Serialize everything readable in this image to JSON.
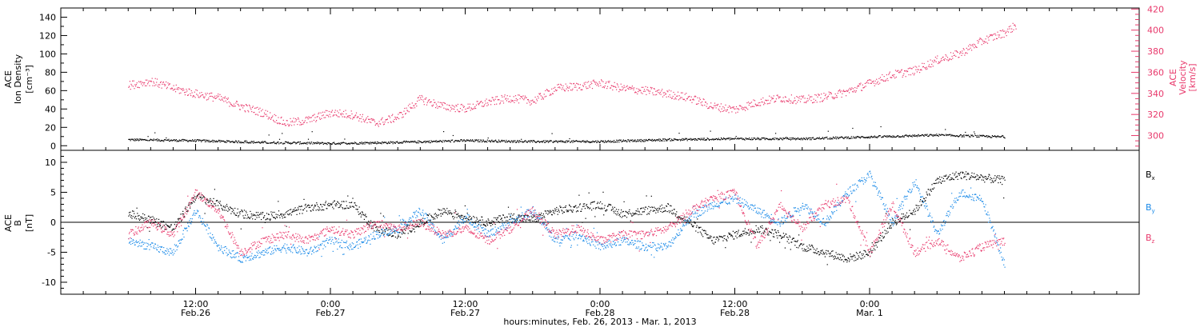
{
  "chart_data": [
    {
      "type": "scatter",
      "panel": "top",
      "ylabel_left": [
        "ACE",
        "Ion Density",
        "[cm⁻³]"
      ],
      "ylabel_right": [
        "ACE",
        "Velocity",
        "[km/s]"
      ],
      "ylim_left": [
        -5,
        150
      ],
      "yticks_left": [
        "0",
        "20",
        "40",
        "60",
        "80",
        "100",
        "120",
        "140"
      ],
      "ylim_right": [
        286,
        421
      ],
      "yticks_right": [
        "300",
        "320",
        "340",
        "360",
        "380",
        "400",
        "420"
      ],
      "series": [
        {
          "axis": "left",
          "color": "#000000",
          "x_hours": [
            0,
            6,
            12,
            18,
            24,
            30,
            36,
            42,
            48,
            54,
            60,
            66,
            72,
            78
          ],
          "values": [
            7,
            6,
            4,
            3,
            4,
            6,
            5,
            5,
            7,
            8,
            8,
            10,
            12,
            10
          ]
        },
        {
          "axis": "right",
          "color": "#e8386b",
          "x_hours": [
            0,
            2,
            4,
            6,
            8,
            10,
            12,
            14,
            16,
            18,
            20,
            22,
            24,
            26,
            28,
            30,
            32,
            34,
            36,
            38,
            40,
            42,
            44,
            46,
            48,
            50,
            52,
            54,
            56,
            58,
            60,
            62,
            64,
            66,
            68,
            70,
            72,
            74,
            76,
            78,
            79
          ],
          "values": [
            348,
            352,
            345,
            340,
            336,
            328,
            322,
            312,
            315,
            322,
            320,
            312,
            318,
            335,
            328,
            326,
            332,
            336,
            333,
            345,
            347,
            350,
            345,
            343,
            340,
            336,
            328,
            325,
            332,
            336,
            334,
            337,
            342,
            350,
            358,
            362,
            372,
            378,
            390,
            398,
            405
          ]
        }
      ]
    },
    {
      "type": "scatter",
      "panel": "bottom",
      "ylabel": [
        "ACE",
        "B",
        "[nT]"
      ],
      "ylim": [
        -12,
        12
      ],
      "yticks": [
        "10",
        "5",
        "0",
        "-5",
        "-10"
      ],
      "legend": [
        {
          "label": "B",
          "sub": "x",
          "color": "#000000"
        },
        {
          "label": "B",
          "sub": "y",
          "color": "#1a8ae8"
        },
        {
          "label": "B",
          "sub": "z",
          "color": "#e8386b"
        }
      ],
      "series": [
        {
          "name": "Bx",
          "color": "#000000",
          "x_hours": [
            0,
            2,
            4,
            6,
            8,
            10,
            12,
            14,
            16,
            18,
            20,
            22,
            24,
            26,
            28,
            30,
            32,
            34,
            36,
            38,
            40,
            42,
            44,
            46,
            48,
            50,
            52,
            54,
            56,
            58,
            60,
            62,
            64,
            66,
            68,
            70,
            72,
            74,
            76,
            78
          ],
          "values": [
            1.5,
            0.5,
            -1,
            4.5,
            3,
            1.5,
            1,
            1.5,
            2.5,
            3,
            3,
            -1,
            -2,
            0,
            2,
            1,
            0,
            1,
            0.5,
            2,
            2.5,
            3,
            1.5,
            2,
            2.5,
            0,
            -3,
            -2,
            -1,
            -2,
            -4,
            -5,
            -6,
            -5,
            0,
            2,
            7,
            8,
            7.5,
            7
          ]
        },
        {
          "name": "By",
          "color": "#1a8ae8",
          "x_hours": [
            0,
            2,
            4,
            6,
            8,
            10,
            12,
            14,
            16,
            18,
            20,
            22,
            24,
            26,
            28,
            30,
            32,
            34,
            36,
            38,
            40,
            42,
            44,
            46,
            48,
            50,
            52,
            54,
            56,
            58,
            60,
            62,
            64,
            66,
            68,
            70,
            72,
            74,
            76,
            78
          ],
          "values": [
            -3,
            -4,
            -5,
            2,
            -4,
            -6,
            -5,
            -4,
            -5,
            -3,
            -4,
            -2,
            -1,
            2,
            -3,
            1,
            -2,
            0,
            2,
            -3,
            -2,
            -4,
            -3,
            -4,
            -4,
            1,
            3,
            4,
            2,
            0,
            3,
            0,
            5,
            8,
            0,
            7,
            -2,
            5,
            4,
            -7
          ]
        },
        {
          "name": "Bz",
          "color": "#e8386b",
          "x_hours": [
            0,
            2,
            4,
            6,
            8,
            10,
            12,
            14,
            16,
            18,
            20,
            22,
            24,
            26,
            28,
            30,
            32,
            34,
            36,
            38,
            40,
            42,
            44,
            46,
            48,
            50,
            52,
            54,
            56,
            58,
            60,
            62,
            64,
            66,
            68,
            70,
            72,
            74,
            76,
            78
          ],
          "values": [
            -2,
            0,
            -2,
            5,
            2,
            -5,
            -3,
            -2,
            -3,
            -1,
            -2,
            0,
            -1,
            0,
            -2,
            -1,
            -3,
            -1,
            2,
            -2,
            -1,
            -3,
            -2,
            -2,
            -1,
            2,
            4,
            5,
            -4,
            3,
            -1,
            3,
            4,
            -5,
            3,
            -5,
            -3,
            -6,
            -4,
            -3
          ]
        }
      ]
    }
  ],
  "x_axis": {
    "xlim_hours": [
      -6,
      90
    ],
    "ticks": [
      {
        "hours": 6,
        "time": "12:00",
        "date": "Feb.26"
      },
      {
        "hours": 18,
        "time": "0:00",
        "date": "Feb.27"
      },
      {
        "hours": 30,
        "time": "12:00",
        "date": "Feb.27"
      },
      {
        "hours": 42,
        "time": "0:00",
        "date": "Feb.28"
      },
      {
        "hours": 54,
        "time": "12:00",
        "date": "Feb.28"
      },
      {
        "hours": 66,
        "time": "0:00",
        "date": "Mar. 1"
      }
    ],
    "xlabel": "hours:minutes, Feb. 26, 2013 - Mar. 1, 2013"
  },
  "colors": {
    "density": "#000000",
    "velocity": "#e8386b",
    "bx": "#000000",
    "by": "#1a8ae8",
    "bz": "#e8386b"
  }
}
